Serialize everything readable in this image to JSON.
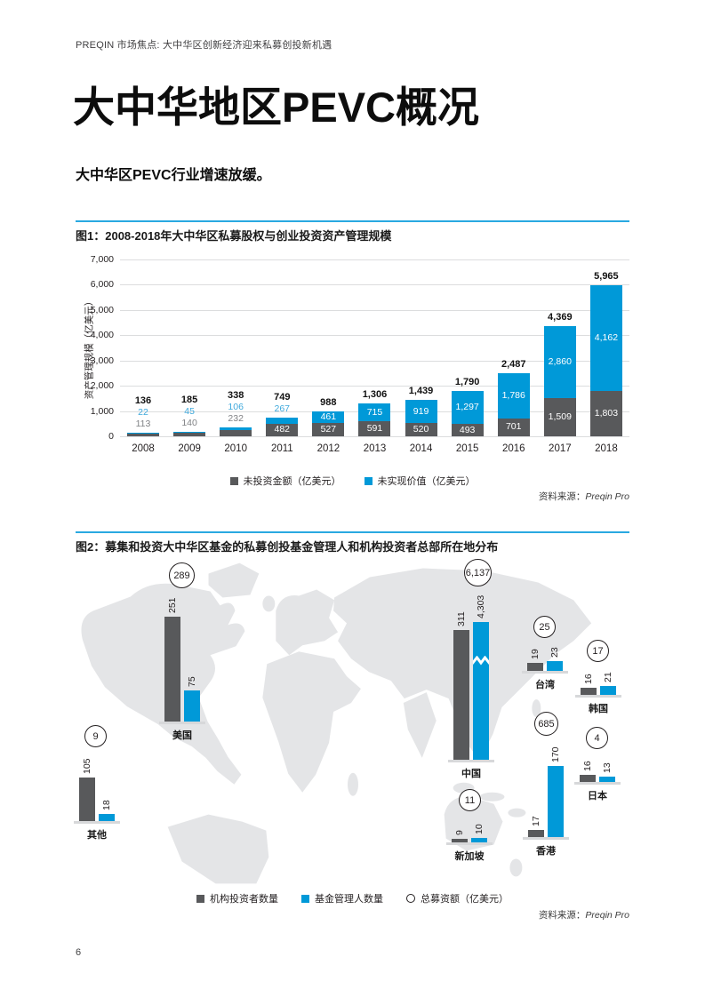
{
  "page": {
    "header": "PREQIN 市场焦点: 大中华区创新经济迎来私募创投新机遇",
    "title": "大中华地区PEVC概况",
    "subtitle": "大中华区PEVC行业增速放缓。",
    "page_number": "6"
  },
  "colors": {
    "bar_blue": "#0099d8",
    "bar_gray": "#58595b",
    "rule_blue": "#29a9e1",
    "map_gray": "#e4e5e7",
    "value_blue_text": "#3fa9dc",
    "value_gray_text": "#808285"
  },
  "chart_data": [
    {
      "type": "bar",
      "stacked": true,
      "title": "图1：2008-2018年大中华区私募股权与创业投资资产管理规模",
      "ylabel": "资产管理规模（亿美元）",
      "ylim": [
        0,
        7000
      ],
      "grid": true,
      "yticks": [
        "0",
        "1,000",
        "2,000",
        "3,000",
        "4,000",
        "5,000",
        "6,000",
        "7,000"
      ],
      "categories": [
        "2008",
        "2009",
        "2010",
        "2011",
        "2012",
        "2013",
        "2014",
        "2015",
        "2016",
        "2017",
        "2018"
      ],
      "series": [
        {
          "name": "未投资金额（亿美元）",
          "color": "#58595b",
          "values": [
            113,
            140,
            232,
            482,
            527,
            591,
            520,
            493,
            701,
            1509,
            1803
          ],
          "labels": [
            "113",
            "140",
            "232",
            "482",
            "527",
            "591",
            "520",
            "493",
            "701",
            "1,509",
            "1,803"
          ]
        },
        {
          "name": "未实现价值（亿美元）",
          "color": "#0099d8",
          "values": [
            22,
            45,
            106,
            267,
            461,
            715,
            919,
            1297,
            1786,
            2860,
            4162
          ],
          "labels": [
            "22",
            "45",
            "106",
            "267",
            "461",
            "715",
            "919",
            "1,297",
            "1,786",
            "2,860",
            "4,162"
          ]
        }
      ],
      "totals": [
        "136",
        "185",
        "338",
        "749",
        "988",
        "1,306",
        "1,439",
        "1,790",
        "2,487",
        "4,369",
        "5,965"
      ],
      "legend_position": "bottom-center",
      "source_label": "资料来源：",
      "source_value": "Preqin Pro"
    },
    {
      "type": "map-bars",
      "title": "图2：募集和投资大中华区基金的私募创投基金管理人和机构投资者总部所在地分布",
      "legend": [
        {
          "label": "机构投资者数量",
          "marker": "square",
          "color": "#58595b"
        },
        {
          "label": "基金管理人数量",
          "marker": "square",
          "color": "#0099d8"
        },
        {
          "label": "总募资额（亿美元）",
          "marker": "circle-outline"
        }
      ],
      "stations": [
        {
          "name": "美国",
          "investors": 251,
          "investors_label": "251",
          "managers": 75,
          "managers_label": "75",
          "total_raised_label": "289"
        },
        {
          "name": "其他",
          "investors": 105,
          "investors_label": "105",
          "managers": 18,
          "managers_label": "18",
          "total_raised_label": "9"
        },
        {
          "name": "中国",
          "investors": 311,
          "investors_label": "311",
          "managers": 4303,
          "managers_label": "4,303",
          "total_raised_label": "6,137",
          "axis_break": true
        },
        {
          "name": "台湾",
          "investors": 19,
          "investors_label": "19",
          "managers": 23,
          "managers_label": "23",
          "total_raised_label": "25"
        },
        {
          "name": "韩国",
          "investors": 16,
          "investors_label": "16",
          "managers": 21,
          "managers_label": "21",
          "total_raised_label": "17"
        },
        {
          "name": "日本",
          "investors": 16,
          "investors_label": "16",
          "managers": 13,
          "managers_label": "13",
          "total_raised_label": "4"
        },
        {
          "name": "香港",
          "investors": 17,
          "investors_label": "17",
          "managers": 170,
          "managers_label": "170",
          "total_raised_label": "685"
        },
        {
          "name": "新加坡",
          "investors": 9,
          "investors_label": "9",
          "managers": 10,
          "managers_label": "10",
          "total_raised_label": "11"
        }
      ],
      "source_label": "资料来源：",
      "source_value": "Preqin Pro"
    }
  ]
}
